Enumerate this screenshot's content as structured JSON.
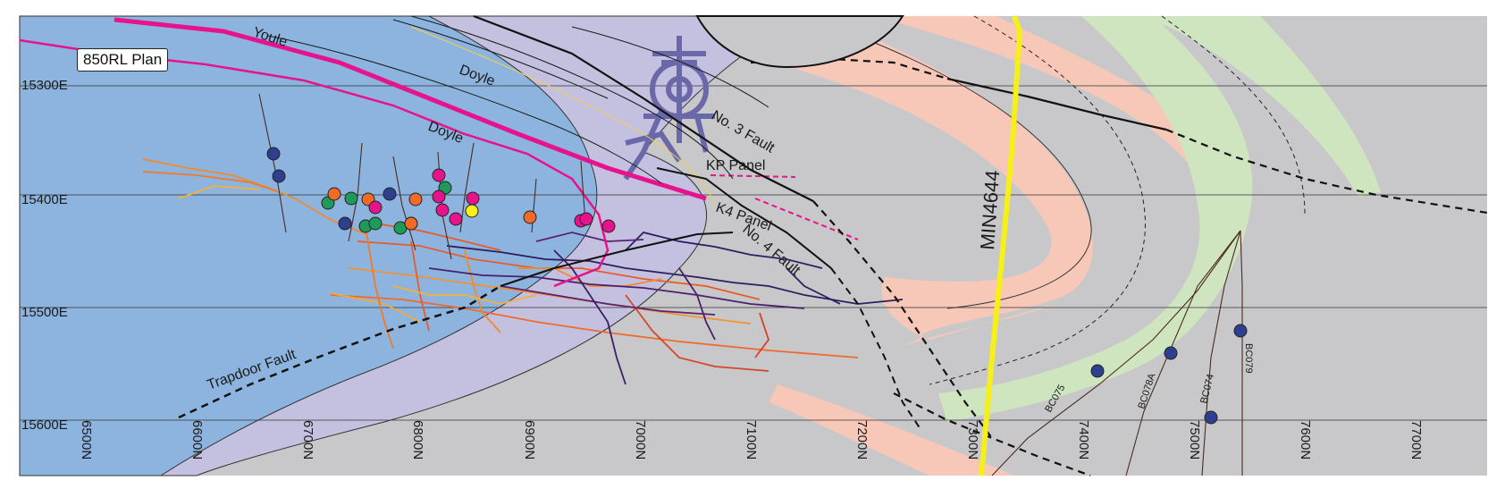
{
  "title": "850RL Plan",
  "grid": {
    "northing_labels": [
      "15300E",
      "15400E",
      "15500E",
      "15600E"
    ],
    "easting_labels": [
      "6500N",
      "6600N",
      "6700N",
      "6800N",
      "6900N",
      "7000N",
      "7100N",
      "7200N",
      "7300N",
      "7400N",
      "7500N",
      "7600N",
      "7700N"
    ]
  },
  "geology_labels": {
    "youle": "Youle",
    "doyle_upper": "Doyle",
    "doyle_lower": "Doyle",
    "no3_fault": "No. 3 Fault",
    "no4_fault": "No. 4 Fault",
    "kp_panel": "KP Panel",
    "k4_panel": "K4 Panel",
    "trapdoor_fault": "Trapdoor Fault",
    "tenement": "MIN4644"
  },
  "drillholes": [
    "BC075",
    "BC078A",
    "BC074",
    "BC079"
  ],
  "colors": {
    "background": "#c8c8ca",
    "blue_unit": "#8db4de",
    "lavender_unit": "#c4c0e0",
    "salmon_band": "#f7c8b8",
    "green_band": "#cfe5c0",
    "doyle_contact": "#e6138c",
    "tenement_line": "#f7ef1a",
    "workings_warm": "#f08a2c",
    "workings_dark": "#4a1f6b",
    "headframe": "#6a68a8",
    "drillhole_marker": "#2e3f8f"
  }
}
